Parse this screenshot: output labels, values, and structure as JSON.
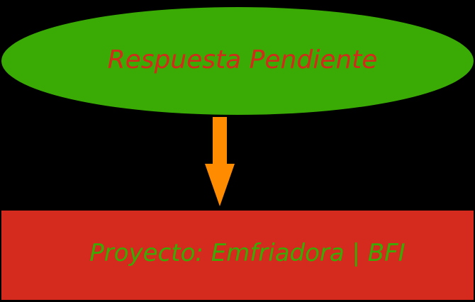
{
  "diagram": {
    "top_node": {
      "label": "Respuesta Pendiente",
      "shape": "ellipse",
      "fill_color": "#3aaa05",
      "text_color": "#d42a1c"
    },
    "connector": {
      "type": "arrow-down",
      "color": "#ff8c00"
    },
    "bottom_node": {
      "label": "Proyecto: Emfriadora | BFI",
      "shape": "rectangle",
      "fill_color": "#d52b1e",
      "text_color": "#3aaa05"
    },
    "background_color": "#000000"
  }
}
